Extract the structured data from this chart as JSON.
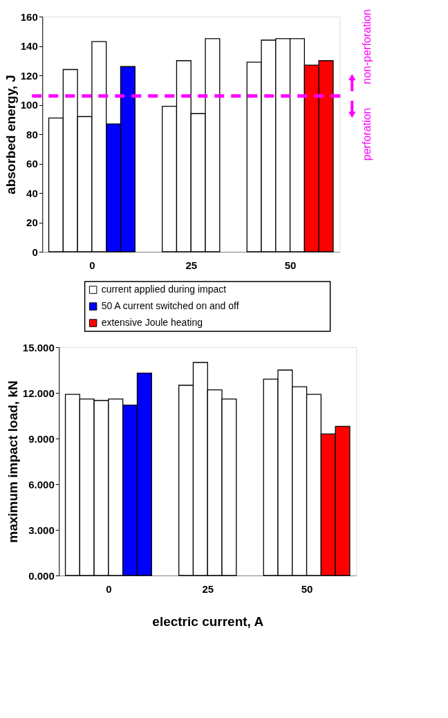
{
  "chart_data": [
    {
      "type": "bar",
      "ylabel": "absorbed energy, J",
      "categories": [
        "0",
        "25",
        "50"
      ],
      "ylim": [
        0,
        160
      ],
      "yticks": [
        0,
        20,
        40,
        60,
        80,
        100,
        120,
        140,
        160
      ],
      "grid": false,
      "legend": "bottom",
      "series": [
        {
          "name": "current applied during impact",
          "color": "#ffffff",
          "values": [
            91,
            99,
            129
          ]
        },
        {
          "color": "#ffffff",
          "values": [
            124,
            130,
            144
          ]
        },
        {
          "color": "#ffffff",
          "values": [
            92,
            94,
            145
          ]
        },
        {
          "color": "#ffffff",
          "values": [
            143,
            145,
            145
          ]
        },
        {
          "name": "50 A current switched on and off",
          "color": "#0000ff",
          "values": [
            87,
            null,
            null
          ]
        },
        {
          "color": "#0000ff",
          "values": [
            126,
            null,
            null
          ]
        },
        {
          "name": "extensive Joule heating",
          "color": "#ff0000",
          "values": [
            null,
            null,
            127
          ]
        },
        {
          "color": "#ff0000",
          "values": [
            null,
            null,
            130
          ]
        }
      ],
      "ref_lines": [
        {
          "axis": "y",
          "value": 106,
          "color": "#ff00ff",
          "line_style": "dashed"
        }
      ],
      "annotations": [
        "non-perforation",
        "perforation"
      ]
    },
    {
      "type": "bar",
      "ylabel": "maximum impact load, kN",
      "xlabel": "electric current, A",
      "categories": [
        "0",
        "25",
        "50"
      ],
      "ylim": [
        0,
        15
      ],
      "yticks": [
        {
          "value": 0,
          "label": "0.000"
        },
        {
          "value": 3,
          "label": "3.000"
        },
        {
          "value": 6,
          "label": "6.000"
        },
        {
          "value": 9,
          "label": "9.000"
        },
        {
          "value": 12,
          "label": "12.000"
        },
        {
          "value": 15,
          "label": "15.000"
        }
      ],
      "grid": false,
      "series": [
        {
          "color": "#ffffff",
          "values": [
            11.9,
            12.5,
            12.9
          ]
        },
        {
          "color": "#ffffff",
          "values": [
            11.6,
            14.0,
            13.5
          ]
        },
        {
          "color": "#ffffff",
          "values": [
            11.5,
            12.2,
            12.4
          ]
        },
        {
          "color": "#ffffff",
          "values": [
            11.6,
            11.6,
            11.9
          ]
        },
        {
          "color": "#0000ff",
          "values": [
            11.2,
            null,
            null
          ]
        },
        {
          "color": "#0000ff",
          "values": [
            13.3,
            null,
            null
          ]
        },
        {
          "color": "#ff0000",
          "values": [
            null,
            null,
            9.3
          ]
        },
        {
          "color": "#ff0000",
          "values": [
            null,
            null,
            9.8
          ]
        }
      ]
    }
  ]
}
